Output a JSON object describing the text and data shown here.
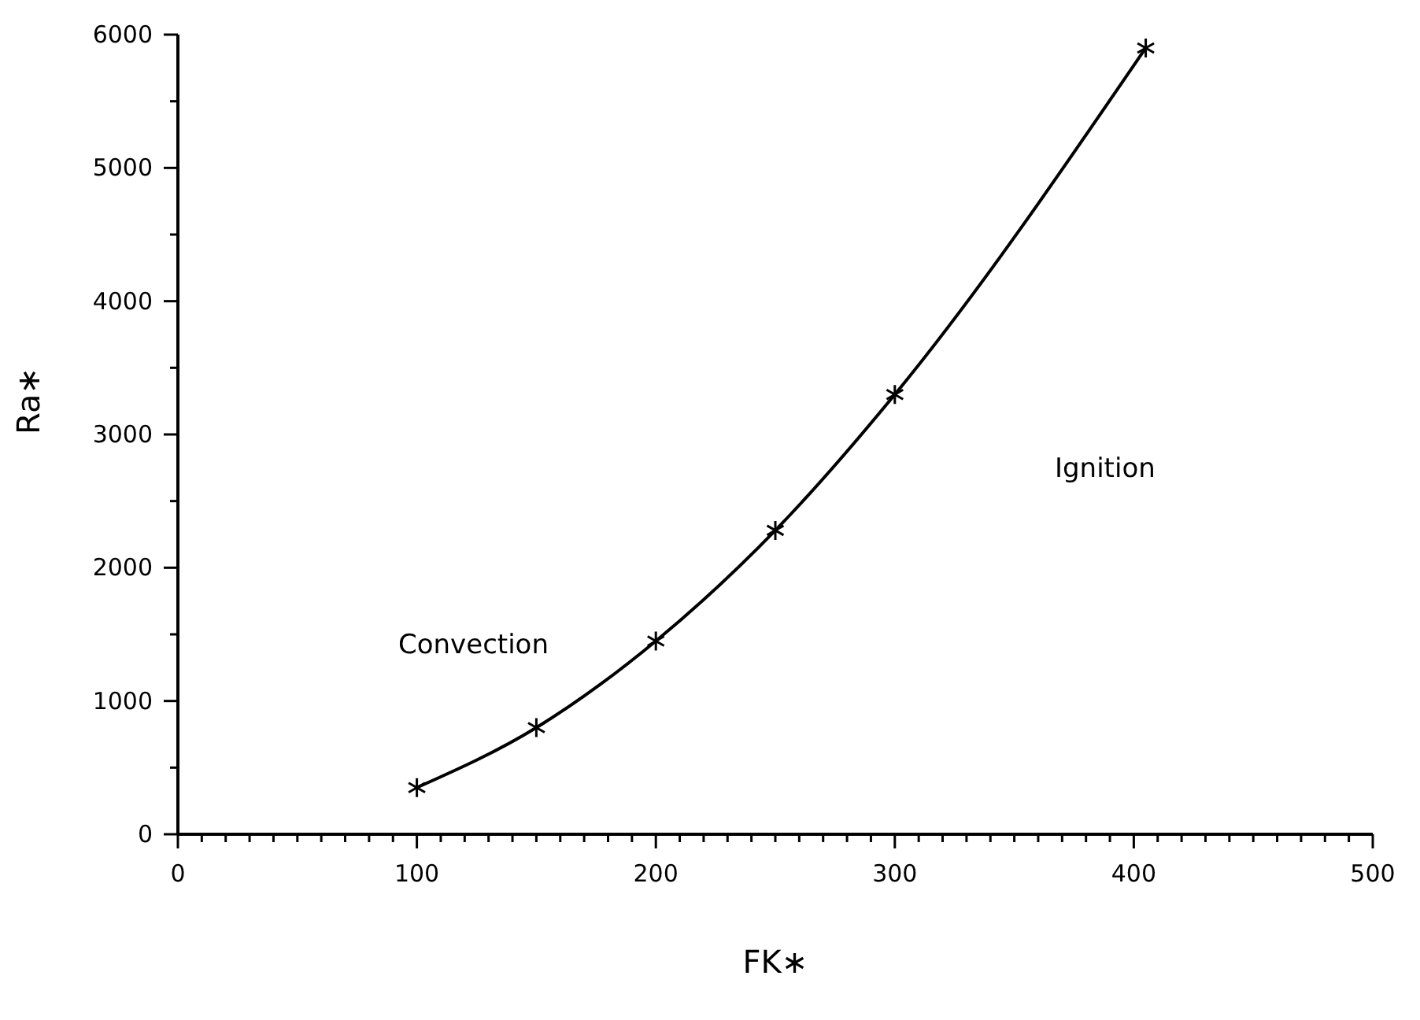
{
  "chart_data": {
    "type": "line",
    "xlabel": "FK∗",
    "ylabel": "Ra∗",
    "x": [
      100,
      150,
      200,
      250,
      300,
      405
    ],
    "series": [
      {
        "color": "#000000",
        "values": [
          350,
          800,
          1450,
          2280,
          3300,
          5900
        ]
      }
    ],
    "marker": "cross",
    "line_style": "solid",
    "grid": false,
    "legend": false,
    "xlim": [
      0,
      500
    ],
    "ylim": [
      0,
      6000
    ],
    "xticks": [
      0,
      {
        "value": 10,
        "label": null
      },
      {
        "value": 20,
        "label": null
      },
      {
        "value": 30,
        "label": null
      },
      {
        "value": 40,
        "label": null
      },
      {
        "value": 50,
        "label": null
      },
      {
        "value": 60,
        "label": null
      },
      {
        "value": 70,
        "label": null
      },
      {
        "value": 80,
        "label": null
      },
      {
        "value": 90,
        "label": null
      },
      100,
      {
        "value": 110,
        "label": null
      },
      {
        "value": 120,
        "label": null
      },
      {
        "value": 130,
        "label": null
      },
      {
        "value": 140,
        "label": null
      },
      {
        "value": 150,
        "label": null
      },
      {
        "value": 160,
        "label": null
      },
      {
        "value": 170,
        "label": null
      },
      {
        "value": 180,
        "label": null
      },
      {
        "value": 190,
        "label": null
      },
      200,
      {
        "value": 210,
        "label": null
      },
      {
        "value": 220,
        "label": null
      },
      {
        "value": 230,
        "label": null
      },
      {
        "value": 240,
        "label": null
      },
      {
        "value": 250,
        "label": null
      },
      {
        "value": 260,
        "label": null
      },
      {
        "value": 270,
        "label": null
      },
      {
        "value": 280,
        "label": null
      },
      {
        "value": 290,
        "label": null
      },
      300,
      {
        "value": 310,
        "label": null
      },
      {
        "value": 320,
        "label": null
      },
      {
        "value": 330,
        "label": null
      },
      {
        "value": 340,
        "label": null
      },
      {
        "value": 350,
        "label": null
      },
      {
        "value": 360,
        "label": null
      },
      {
        "value": 370,
        "label": null
      },
      {
        "value": 380,
        "label": null
      },
      {
        "value": 390,
        "label": null
      },
      400,
      {
        "value": 410,
        "label": null
      },
      {
        "value": 420,
        "label": null
      },
      {
        "value": 430,
        "label": null
      },
      {
        "value": 440,
        "label": null
      },
      {
        "value": 450,
        "label": null
      },
      {
        "value": 460,
        "label": null
      },
      {
        "value": 470,
        "label": null
      },
      {
        "value": 480,
        "label": null
      },
      {
        "value": 490,
        "label": null
      },
      500
    ],
    "yticks": [
      0,
      {
        "value": 500,
        "label": null
      },
      1000,
      {
        "value": 1500,
        "label": null
      },
      2000,
      {
        "value": 2500,
        "label": null
      },
      3000,
      {
        "value": 3500,
        "label": null
      },
      4000,
      {
        "value": 4500,
        "label": null
      },
      5000,
      {
        "value": 5500,
        "label": null
      },
      6000
    ],
    "annotations": [
      "Convection",
      "Ignition"
    ]
  }
}
